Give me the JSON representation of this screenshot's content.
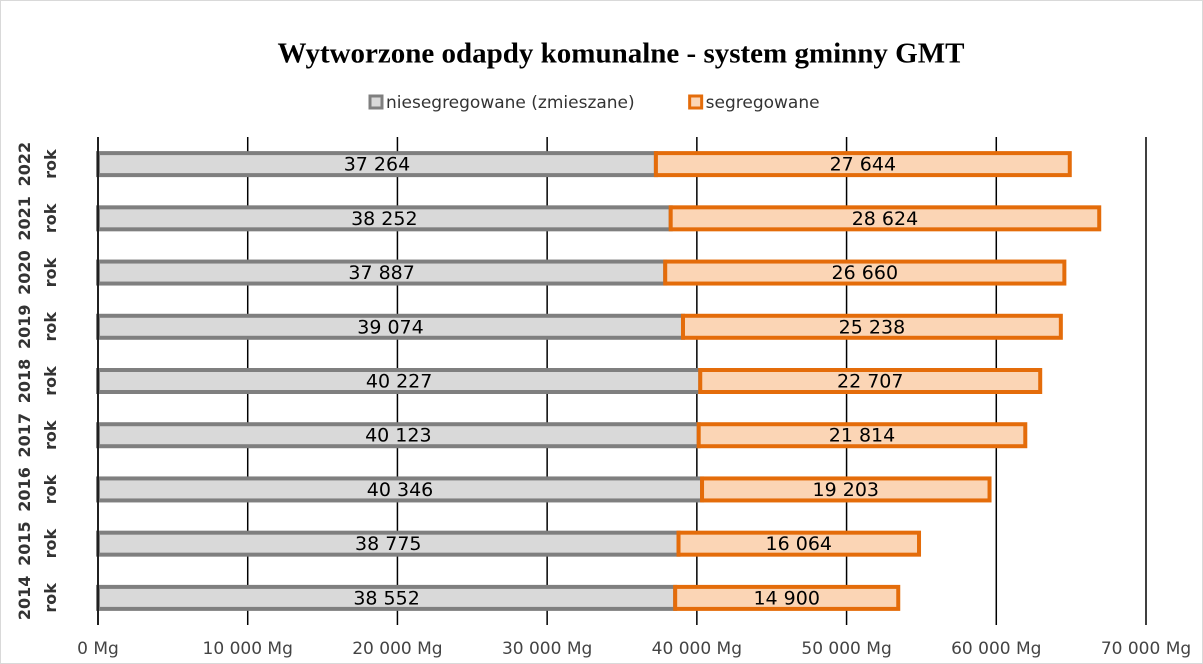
{
  "chart_data": {
    "type": "stacked-barh",
    "title": "Wytworzone odapdy komunalne - system gminny GMT",
    "categories": [
      "2014 rok",
      "2015 rok",
      "2016 rok",
      "2017 rok",
      "2018 rok",
      "2019 rok",
      "2020 rok",
      "2021 rok",
      "2022 rok"
    ],
    "series": [
      {
        "name": "niesegregowane (zmieszane)",
        "color": "#d9d9d9",
        "edge": "#7f7f7f",
        "values": [
          38552,
          38775,
          40346,
          40123,
          40227,
          39074,
          37887,
          38252,
          37264
        ],
        "value_labels": [
          "38 552",
          "38 775",
          "40 346",
          "40 123",
          "40 227",
          "39 074",
          "37 887",
          "38 252",
          "37 264"
        ]
      },
      {
        "name": "segregowane",
        "color": "#fbd5b5",
        "edge": "#e46c0a",
        "values": [
          14900,
          16064,
          19203,
          21814,
          22707,
          25238,
          26660,
          28624,
          27644
        ],
        "value_labels": [
          "14 900",
          "16 064",
          "19 203",
          "21 814",
          "22 707",
          "25 238",
          "26 660",
          "28 624",
          "27 644"
        ]
      }
    ],
    "xlim": [
      0,
      70000
    ],
    "xticks": [
      {
        "value": 0,
        "label": "0 Mg"
      },
      {
        "value": 10000,
        "label": "10 000 Mg"
      },
      {
        "value": 20000,
        "label": "20 000 Mg"
      },
      {
        "value": 30000,
        "label": "30 000 Mg"
      },
      {
        "value": 40000,
        "label": "40 000 Mg"
      },
      {
        "value": 50000,
        "label": "50 000 Mg"
      },
      {
        "value": 60000,
        "label": "60 000 Mg"
      },
      {
        "value": 70000,
        "label": "70 000 Mg"
      }
    ],
    "grid": true,
    "legend": "top"
  }
}
